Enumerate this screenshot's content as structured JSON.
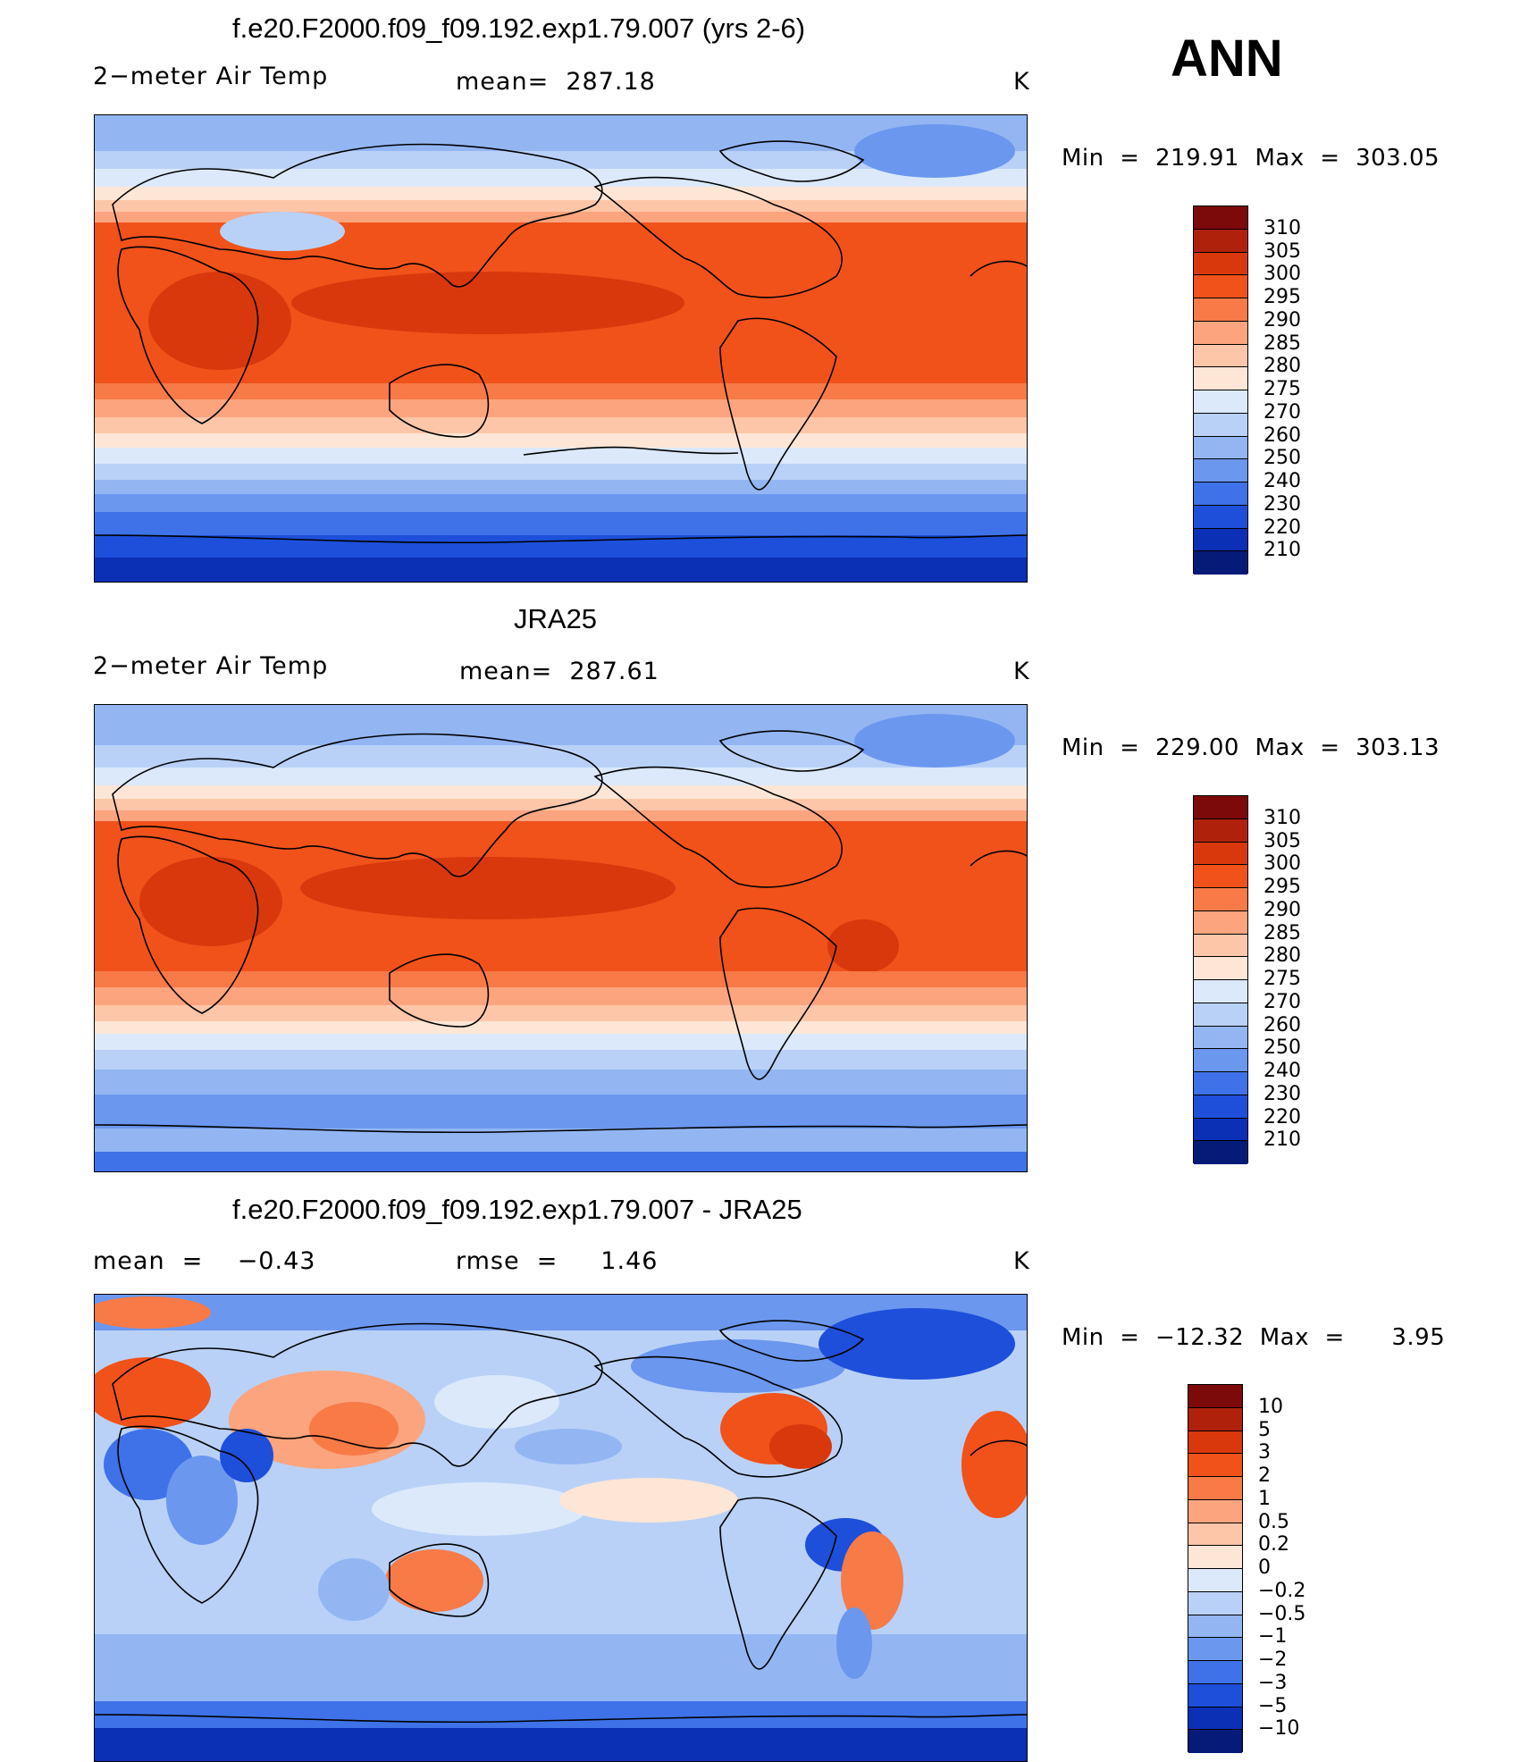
{
  "season": "ANN",
  "panels": [
    {
      "title": "f.e20.F2000.f09_f09.192.exp1.79.007 (yrs 2-6)",
      "left_label": "2−meter Air Temp",
      "mid_label": "mean=  287.18",
      "units": "K",
      "minmax": "Min  =  219.91  Max  =  303.05"
    },
    {
      "title": "JRA25",
      "left_label": "2−meter Air Temp",
      "mid_label": "mean=  287.61",
      "units": "K",
      "minmax": "Min  =  229.00  Max  =  303.13"
    },
    {
      "title": "f.e20.F2000.f09_f09.192.exp1.79.007 - JRA25",
      "left_label": "mean  =    −0.43",
      "mid_label": "rmse  =     1.46",
      "units": "K",
      "minmax": "Min  =  −12.32  Max  =      3.95"
    }
  ],
  "colorbars": {
    "temperature": {
      "labels": [
        "310",
        "305",
        "300",
        "295",
        "290",
        "285",
        "280",
        "275",
        "270",
        "260",
        "250",
        "240",
        "230",
        "220",
        "210"
      ],
      "colors": [
        "#7d0a0a",
        "#b0210b",
        "#d9380c",
        "#f0521a",
        "#f77a47",
        "#fba47e",
        "#fdc6a8",
        "#fde6d6",
        "#dbe9fb",
        "#b9d1f7",
        "#93b6f3",
        "#6b97ee",
        "#3f72e8",
        "#1d4fda",
        "#0b2fb5",
        "#061a78"
      ]
    },
    "difference": {
      "labels": [
        "10",
        "5",
        "3",
        "2",
        "1",
        "0.5",
        "0.2",
        "0",
        "−0.2",
        "−0.5",
        "−1",
        "−2",
        "−3",
        "−5",
        "−10"
      ],
      "colors": [
        "#7d0a0a",
        "#b0210b",
        "#d9380c",
        "#f0521a",
        "#f77a47",
        "#fba47e",
        "#fdc6a8",
        "#fde6d6",
        "#dbe9fb",
        "#b9d1f7",
        "#93b6f3",
        "#6b97ee",
        "#3f72e8",
        "#1d4fda",
        "#0b2fb5",
        "#061a78"
      ]
    }
  }
}
